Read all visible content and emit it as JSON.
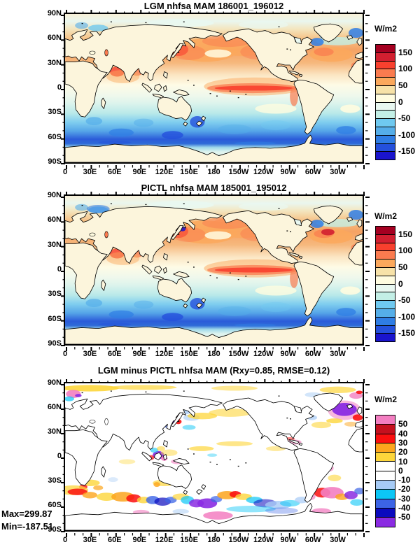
{
  "axes": {
    "x_ticks": [
      "0",
      "30E",
      "60E",
      "90E",
      "120E",
      "150E",
      "180",
      "150W",
      "120W",
      "90W",
      "60W",
      "30W"
    ],
    "y_ticks": [
      "90N",
      "60N",
      "30N",
      "0",
      "30S",
      "60S",
      "90S"
    ]
  },
  "colorbars": {
    "full": {
      "unit": "W/m2",
      "tick_labels": [
        "150",
        "100",
        "50",
        "0",
        "-50",
        "-100",
        "-150"
      ],
      "colors": [
        "#A50021",
        "#D21F30",
        "#F8402E",
        "#FA7B4F",
        "#FBA85C",
        "#F7E2A8",
        "#FFFCE0",
        "#E9F8F1",
        "#C3EFE6",
        "#6FC9F0",
        "#55AEE9",
        "#2F7DE4",
        "#2450DC",
        "#1A14CD"
      ]
    },
    "diff": {
      "unit": "W/m2",
      "tick_labels": [
        "50",
        "40",
        "30",
        "20",
        "10",
        "0",
        "-10",
        "-20",
        "-30",
        "-40",
        "-50"
      ],
      "colors": [
        "#F37EC1",
        "#C5101E",
        "#FA0F0F",
        "#FCA51D",
        "#FDD63B",
        "#FFFFFF",
        "#FFFFFF",
        "#A6CBF6",
        "#0CC6F6",
        "#3C64E6",
        "#0A0ABE",
        "#8A2BE2"
      ]
    }
  },
  "map_colors": {
    "land_full": "#FCF5DC",
    "land_diff": "#FFFFFF",
    "coast": "#000000",
    "frame": "#000000"
  },
  "stats": {
    "max_label": "Max=299.87",
    "min_label": "Min=-187.51"
  },
  "chart_data": [
    {
      "type": "heatmap",
      "subtype": "filled-contour global map, cylindrical equidistant, 0E-360E",
      "title": "LGM nhfsa MAM 186001_196012",
      "units": "W/m2",
      "colorbar": "full",
      "levels": [
        -150,
        -125,
        -100,
        -75,
        -50,
        -25,
        0,
        25,
        50,
        75,
        100,
        125,
        150
      ],
      "lon_tick_labels": [
        "0",
        "30E",
        "60E",
        "90E",
        "120E",
        "150E",
        "180",
        "150W",
        "120W",
        "90W",
        "60W",
        "30W"
      ],
      "lat_tick_labels": [
        "90N",
        "60N",
        "30N",
        "0",
        "30S",
        "60S",
        "90S"
      ],
      "features": [
        "land masked in cream",
        "positive flux (orange/red) over NH mid-latitude oceans, Kuroshio dark-red maximum off Japan",
        "narrow strong positive tongue along equatorial Pacific",
        "red patches in Arabian Sea, Bay of Bengal, Gulf Stream",
        "negative flux (blues) across SH subtropics, deepest blues 45S-65S and Tasman Sea",
        "pale cyan band along Antarctic coast; blue blobs in Barents Sea, Labrador Sea, Greenland Sea"
      ]
    },
    {
      "type": "heatmap",
      "subtype": "filled-contour global map, cylindrical equidistant, 0E-360E",
      "title": "PICTL nhfsa MAM 185001_195012",
      "units": "W/m2",
      "colorbar": "full",
      "levels": [
        -150,
        -125,
        -100,
        -75,
        -50,
        -25,
        0,
        25,
        50,
        75,
        100,
        125,
        150
      ],
      "lon_tick_labels": [
        "0",
        "30E",
        "60E",
        "90E",
        "120E",
        "150E",
        "180",
        "150W",
        "120W",
        "90W",
        "60W",
        "30W"
      ],
      "lat_tick_labels": [
        "90N",
        "60N",
        "30N",
        "0",
        "30S",
        "60S",
        "90S"
      ],
      "features": [
        "pattern nearly identical to LGM panel",
        "stronger dark-red Gulf Stream maximum in NW Atlantic",
        "dark blue spot adjacent to Japan near Kuroshio",
        "blue Barents/Norwegian Sea blobs"
      ]
    },
    {
      "type": "heatmap",
      "subtype": "filled-contour global difference map, cylindrical equidistant, 0E-360E",
      "title": "LGM minus PICTL nhfsa MAM (Rxy=0.85, RMSE=0.12)",
      "units": "W/m2",
      "colorbar": "diff",
      "rxy": 0.85,
      "rmse": 0.12,
      "max": 299.87,
      "min": -187.51,
      "levels": [
        -50,
        -40,
        -30,
        -20,
        -10,
        0,
        10,
        20,
        30,
        40,
        50
      ],
      "lon_tick_labels": [
        "0",
        "30E",
        "60E",
        "90E",
        "120E",
        "150E",
        "180",
        "150W",
        "120W",
        "90W",
        "60W",
        "30W"
      ],
      "lat_tick_labels": [
        "90N",
        "60N",
        "30N",
        "0",
        "30S",
        "60S",
        "90S"
      ],
      "features": [
        "differences mostly near zero (white), land white",
        "large purple/blue negative anomaly in subpolar North Atlantic with red spot east of it",
        "pink/red and purple patches near Kuroshio and Indonesia",
        "yellow streaks along Arctic margin, N Pacific 40N and equatorial Pacific",
        "alternating red/orange/yellow and blue/purple blobs along Southern Ocean 45S-60S",
        "pink Antarctic coastal patches (Ross Sea, Weddell region), light-blue circumpolar band"
      ]
    }
  ]
}
